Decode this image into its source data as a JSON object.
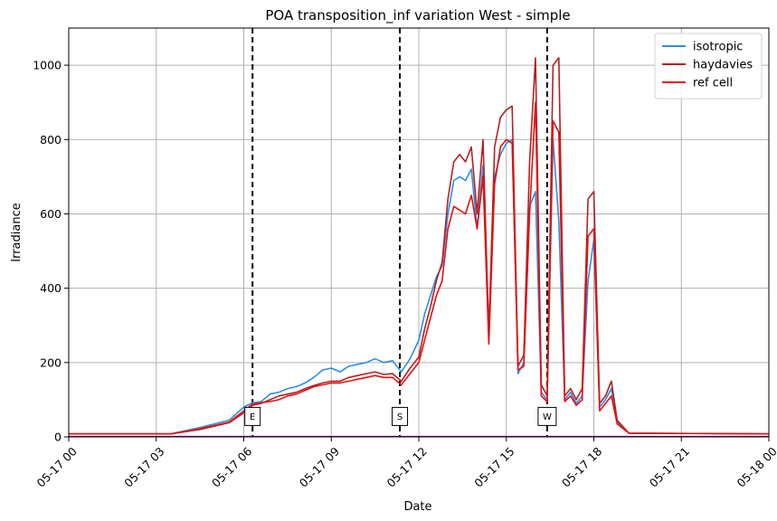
{
  "chart_data": {
    "type": "line",
    "title": "POA transposition_inf variation West - simple",
    "xlabel": "Date",
    "ylabel": "Irradiance",
    "xlim": [
      0,
      24
    ],
    "ylim": [
      0,
      1100
    ],
    "grid": true,
    "legend_position": "top-right",
    "x_ticks": [
      0,
      3,
      6,
      9,
      12,
      15,
      18,
      21,
      24
    ],
    "x_tick_labels": [
      "05-17 00",
      "05-17 03",
      "05-17 06",
      "05-17 09",
      "05-17 12",
      "05-17 15",
      "05-17 18",
      "05-17 21",
      "05-18 00"
    ],
    "y_ticks": [
      0,
      200,
      400,
      600,
      800,
      1000
    ],
    "y_tick_labels": [
      "0",
      "200",
      "400",
      "600",
      "800",
      "1000"
    ],
    "markers": [
      {
        "label": "E",
        "x": 6.3
      },
      {
        "label": "S",
        "x": 11.35
      },
      {
        "label": "W",
        "x": 16.4
      }
    ],
    "series": [
      {
        "name": "isotropic",
        "color": "#2a8fe8",
        "x": [
          0,
          3.5,
          4.5,
          5.5,
          6.0,
          6.3,
          6.6,
          6.9,
          7.2,
          7.5,
          7.8,
          8.1,
          8.4,
          8.7,
          9.0,
          9.3,
          9.6,
          9.9,
          10.2,
          10.5,
          10.8,
          11.1,
          11.4,
          11.7,
          12.0,
          12.2,
          12.4,
          12.6,
          12.8,
          13.0,
          13.2,
          13.4,
          13.6,
          13.8,
          14.0,
          14.2,
          14.4,
          14.6,
          14.8,
          15.0,
          15.2,
          15.4,
          15.6,
          15.8,
          16.0,
          16.2,
          16.4,
          16.6,
          16.8,
          17.0,
          17.2,
          17.4,
          17.6,
          17.8,
          18.0,
          18.2,
          18.4,
          18.6,
          18.8,
          19.2,
          24
        ],
        "values": [
          8,
          8,
          25,
          45,
          80,
          92,
          95,
          115,
          120,
          130,
          135,
          145,
          160,
          180,
          185,
          175,
          190,
          195,
          200,
          210,
          200,
          205,
          175,
          210,
          260,
          330,
          380,
          430,
          460,
          600,
          690,
          700,
          690,
          720,
          560,
          730,
          260,
          700,
          760,
          790,
          800,
          170,
          200,
          620,
          660,
          120,
          100,
          800,
          580,
          100,
          120,
          90,
          110,
          420,
          530,
          80,
          100,
          130,
          40,
          10,
          8
        ]
      },
      {
        "name": "haydavies",
        "color": "#b22222",
        "x": [
          0,
          3.5,
          4.5,
          5.5,
          6.0,
          6.3,
          6.6,
          6.9,
          7.2,
          7.5,
          7.8,
          8.1,
          8.4,
          8.7,
          9.0,
          9.3,
          9.6,
          9.9,
          10.2,
          10.5,
          10.8,
          11.1,
          11.4,
          11.7,
          12.0,
          12.2,
          12.4,
          12.6,
          12.8,
          13.0,
          13.2,
          13.4,
          13.6,
          13.8,
          14.0,
          14.2,
          14.4,
          14.6,
          14.8,
          15.0,
          15.2,
          15.4,
          15.6,
          15.8,
          16.0,
          16.2,
          16.4,
          16.6,
          16.8,
          17.0,
          17.2,
          17.4,
          17.6,
          17.8,
          18.0,
          18.2,
          18.4,
          18.6,
          18.8,
          19.2,
          24
        ],
        "values": [
          8,
          8,
          20,
          38,
          65,
          85,
          90,
          100,
          110,
          115,
          120,
          130,
          138,
          145,
          150,
          150,
          160,
          165,
          170,
          175,
          168,
          170,
          150,
          185,
          215,
          290,
          350,
          420,
          470,
          640,
          740,
          760,
          740,
          780,
          600,
          800,
          280,
          780,
          860,
          880,
          890,
          190,
          220,
          740,
          1020,
          140,
          110,
          1000,
          1020,
          110,
          130,
          100,
          130,
          640,
          660,
          90,
          110,
          150,
          45,
          10,
          8
        ]
      },
      {
        "name": "ref cell",
        "color": "#e61010",
        "x": [
          0,
          3.5,
          4.5,
          5.5,
          6.0,
          6.3,
          6.6,
          6.9,
          7.2,
          7.5,
          7.8,
          8.1,
          8.4,
          8.7,
          9.0,
          9.3,
          9.6,
          9.9,
          10.2,
          10.5,
          10.8,
          11.1,
          11.4,
          11.7,
          12.0,
          12.2,
          12.4,
          12.6,
          12.8,
          13.0,
          13.2,
          13.4,
          13.6,
          13.8,
          14.0,
          14.2,
          14.4,
          14.6,
          14.8,
          15.0,
          15.2,
          15.4,
          15.6,
          15.8,
          16.0,
          16.2,
          16.4,
          16.6,
          16.8,
          17.0,
          17.2,
          17.4,
          17.6,
          17.8,
          18.0,
          18.2,
          18.4,
          18.6,
          18.8,
          19.2,
          24
        ],
        "values": [
          8,
          8,
          22,
          40,
          70,
          88,
          92,
          95,
          100,
          110,
          115,
          125,
          135,
          140,
          145,
          145,
          150,
          155,
          160,
          165,
          160,
          160,
          140,
          170,
          200,
          260,
          320,
          380,
          420,
          560,
          620,
          610,
          600,
          650,
          560,
          700,
          250,
          680,
          780,
          800,
          790,
          180,
          190,
          600,
          900,
          110,
          95,
          850,
          820,
          95,
          110,
          85,
          100,
          540,
          560,
          70,
          90,
          110,
          35,
          10,
          8
        ]
      }
    ]
  }
}
